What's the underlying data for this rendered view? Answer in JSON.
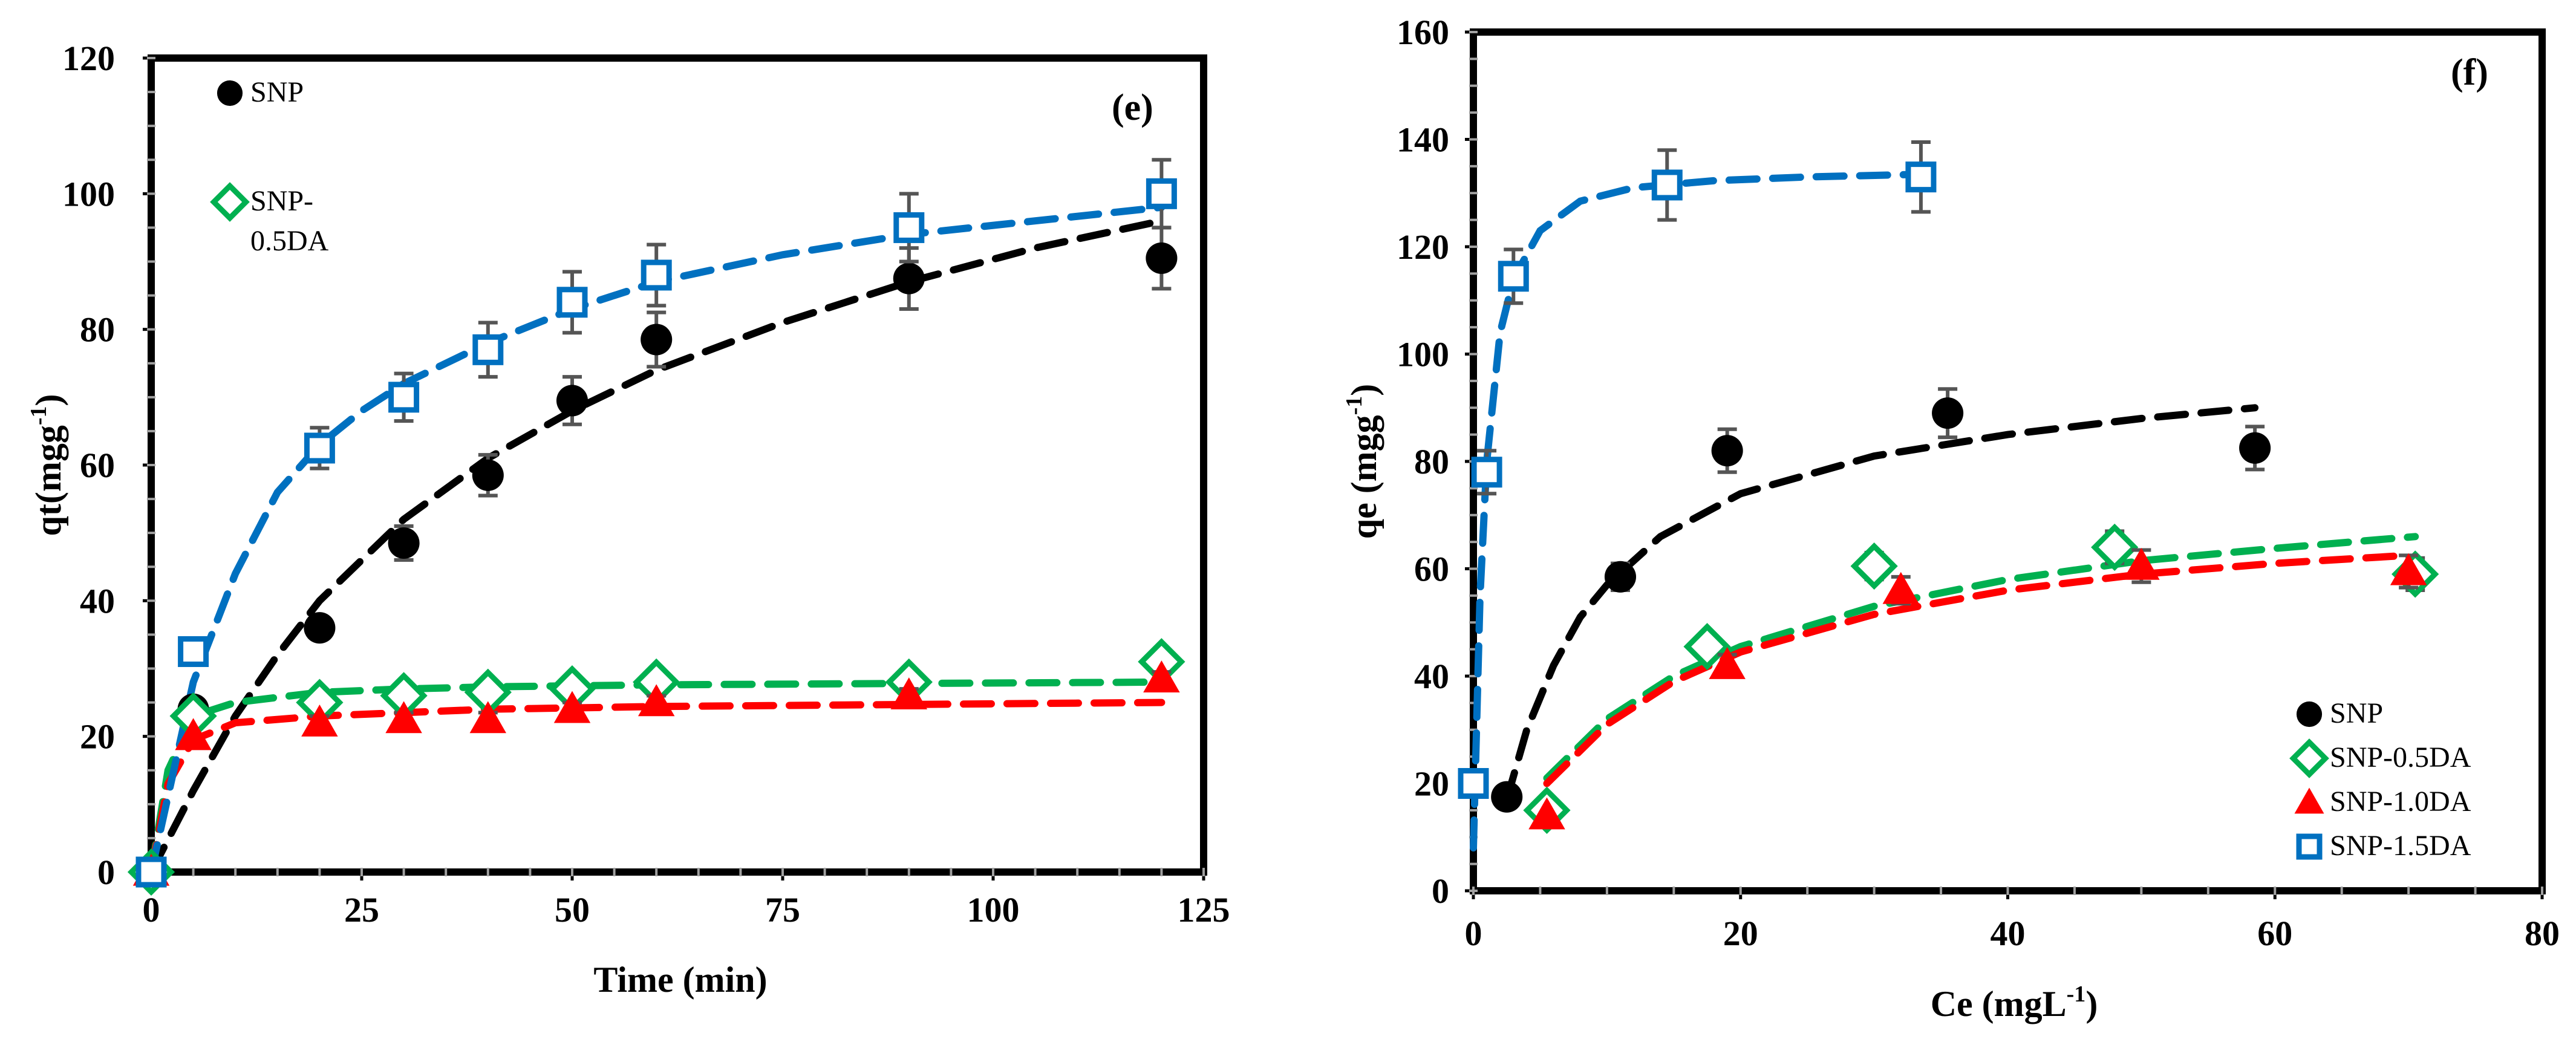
{
  "chart_data": [
    {
      "type": "scatter",
      "panel_label": "(e)",
      "xlabel": "Time (min)",
      "ylabel": "qt(mgg-1)",
      "ylabel_main": "qt(mgg",
      "ylabel_sup": "-1",
      "ylabel_close": ")",
      "xlim": [
        0,
        125
      ],
      "ylim": [
        0,
        120
      ],
      "xticks": [
        0,
        25,
        50,
        75,
        100,
        125
      ],
      "yticks": [
        0,
        20,
        40,
        60,
        80,
        100,
        120
      ],
      "legend_position": "top-left",
      "legend_entries": [
        {
          "name": "SNP",
          "lines": [
            "SNP"
          ]
        },
        {
          "name": "SNP-0.5DA",
          "lines": [
            "SNP-",
            "0.5DA"
          ]
        }
      ],
      "series": [
        {
          "name": "SNP",
          "marker": "circle",
          "color": "#000000",
          "x": [
            0,
            5,
            20,
            30,
            40,
            50,
            60,
            90,
            120
          ],
          "y": [
            0,
            24,
            36,
            48.5,
            58.5,
            69.5,
            78.5,
            87.5,
            90.5
          ],
          "err": [
            0,
            0,
            1.5,
            2.5,
            3,
            3.5,
            4,
            4.5,
            4.5
          ],
          "fit_x": [
            0,
            5,
            10,
            15,
            20,
            25,
            30,
            40,
            50,
            60,
            75,
            90,
            105,
            120
          ],
          "fit_y": [
            0,
            12,
            23,
            32,
            40,
            46,
            52,
            61,
            68,
            74,
            81,
            87,
            92,
            96
          ]
        },
        {
          "name": "SNP-0.5DA",
          "marker": "diamond",
          "color": "#00b050",
          "x": [
            0,
            5,
            20,
            30,
            40,
            50,
            60,
            90,
            120
          ],
          "y": [
            0,
            23,
            25,
            26,
            26.5,
            27,
            28,
            28,
            31
          ],
          "err": [
            0,
            0,
            1,
            1,
            1,
            1,
            1,
            1,
            1
          ],
          "fit_x": [
            0,
            2,
            5,
            10,
            20,
            30,
            40,
            60,
            90,
            120
          ],
          "fit_y": [
            0,
            15,
            23,
            25,
            26.5,
            27,
            27.3,
            27.6,
            27.8,
            28
          ]
        },
        {
          "name": "SNP-1.0DA",
          "marker": "triangle",
          "color": "#ff0000",
          "x": [
            0,
            5,
            20,
            30,
            40,
            50,
            60,
            90,
            120
          ],
          "y": [
            0,
            20,
            22,
            22.5,
            22.5,
            24,
            25,
            26,
            28.5
          ],
          "err": [
            0,
            0,
            1,
            1,
            1,
            1,
            1,
            1,
            1
          ],
          "fit_x": [
            0,
            2,
            5,
            10,
            20,
            30,
            40,
            60,
            90,
            120
          ],
          "fit_y": [
            0,
            13,
            19.5,
            22,
            23,
            23.5,
            24,
            24.4,
            24.7,
            25
          ]
        },
        {
          "name": "SNP-1.5DA",
          "marker": "square",
          "color": "#0070c0",
          "x": [
            0,
            5,
            20,
            30,
            40,
            50,
            60,
            90,
            120
          ],
          "y": [
            0,
            32.5,
            62.5,
            70,
            77,
            84,
            88,
            95,
            100
          ],
          "err": [
            0,
            0,
            3,
            3.5,
            4,
            4.5,
            4.5,
            5,
            5
          ],
          "fit_x": [
            0,
            5,
            10,
            15,
            20,
            25,
            30,
            40,
            50,
            60,
            75,
            90,
            105,
            120
          ],
          "fit_y": [
            0,
            28,
            44,
            56,
            63,
            68,
            72,
            78,
            83,
            87,
            91,
            94,
            96,
            98
          ]
        }
      ]
    },
    {
      "type": "scatter",
      "panel_label": "(f)",
      "xlabel": "Ce (mgL-1)",
      "xlabel_main": "Ce (mgL",
      "xlabel_sup": "-1",
      "xlabel_close": ")",
      "ylabel": "qe (mgg-1)",
      "ylabel_main": "qe (mgg",
      "ylabel_sup": "-1",
      "ylabel_close": ")",
      "xlim": [
        0,
        80
      ],
      "ylim": [
        0,
        160
      ],
      "xticks": [
        0,
        20,
        40,
        60,
        80
      ],
      "yticks": [
        0,
        20,
        40,
        60,
        80,
        100,
        120,
        140,
        160
      ],
      "legend_position": "bottom-right",
      "legend_entries": [
        {
          "name": "SNP",
          "lines": [
            "SNP"
          ]
        },
        {
          "name": "SNP-0.5DA",
          "lines": [
            "SNP-0.5DA"
          ]
        },
        {
          "name": "SNP-1.0DA",
          "lines": [
            "SNP-1.0DA"
          ]
        },
        {
          "name": "SNP-1.5DA",
          "lines": [
            "SNP-1.5DA"
          ]
        }
      ],
      "series": [
        {
          "name": "SNP",
          "marker": "circle",
          "color": "#000000",
          "x": [
            2.5,
            11,
            19,
            35.5,
            58.5
          ],
          "y": [
            17.5,
            58.5,
            82,
            89,
            82.5
          ],
          "err": [
            0,
            2.5,
            4,
            4.5,
            4
          ],
          "fit_x": [
            2.5,
            4,
            6,
            8,
            10,
            14,
            20,
            30,
            40,
            50,
            58.5
          ],
          "fit_y": [
            17,
            30,
            42,
            51,
            57,
            66,
            74,
            81,
            85,
            88,
            90
          ]
        },
        {
          "name": "SNP-0.5DA",
          "marker": "diamond",
          "color": "#00b050",
          "x": [
            5.5,
            17.5,
            30,
            48,
            70.5
          ],
          "y": [
            15,
            45.5,
            60.5,
            64,
            59
          ],
          "err": [
            0,
            2,
            2.5,
            3,
            3
          ],
          "fit_x": [
            5.5,
            10,
            15,
            20,
            30,
            40,
            50,
            60,
            70.5
          ],
          "fit_y": [
            21,
            32,
            40,
            45.5,
            53,
            58,
            61.5,
            63.8,
            66
          ]
        },
        {
          "name": "SNP-1.0DA",
          "marker": "triangle",
          "color": "#ff0000",
          "x": [
            5.5,
            19,
            32,
            50,
            70
          ],
          "y": [
            14,
            42,
            56,
            60.5,
            59.5
          ],
          "err": [
            0,
            2,
            2.5,
            3,
            3
          ],
          "fit_x": [
            5.5,
            10,
            15,
            20,
            30,
            40,
            50,
            60,
            70
          ],
          "fit_y": [
            20,
            31,
            39,
            44.5,
            51.5,
            56,
            59,
            61,
            62.5
          ]
        },
        {
          "name": "SNP-1.5DA",
          "marker": "square",
          "color": "#0070c0",
          "x": [
            0,
            1,
            3,
            14.5,
            33.5
          ],
          "y": [
            20,
            78,
            114.5,
            131.5,
            133
          ],
          "err": [
            0,
            4,
            5,
            6.5,
            6.5
          ],
          "fit_x": [
            0,
            0.5,
            1,
            2,
            3,
            5,
            8,
            12,
            18,
            25,
            33.5
          ],
          "fit_y": [
            8,
            55,
            80,
            104,
            114,
            123,
            128.5,
            131,
            132.3,
            133,
            133.5
          ]
        }
      ]
    }
  ]
}
